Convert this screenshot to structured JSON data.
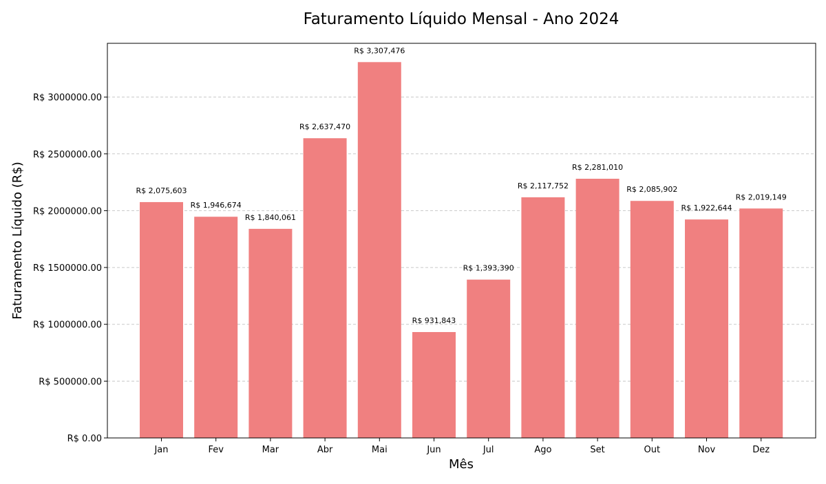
{
  "chart_data": {
    "type": "bar",
    "title": "Faturamento Líquido Mensal - Ano 2024",
    "xlabel": "Mês",
    "ylabel": "Faturamento Líquido (R$)",
    "categories": [
      "Jan",
      "Fev",
      "Mar",
      "Abr",
      "Mai",
      "Jun",
      "Jul",
      "Ago",
      "Set",
      "Out",
      "Nov",
      "Dez"
    ],
    "values": [
      2075603,
      1946674,
      1840061,
      2637470,
      3307476,
      931843,
      1393390,
      2117752,
      2281010,
      2085902,
      1922644,
      2019149
    ],
    "data_labels": [
      "R$ 2,075,603",
      "R$ 1,946,674",
      "R$ 1,840,061",
      "R$ 2,637,470",
      "R$ 3,307,476",
      "R$ 931,843",
      "R$ 1,393,390",
      "R$ 2,117,752",
      "R$ 2,281,010",
      "R$ 2,085,902",
      "R$ 1,922,644",
      "R$ 2,019,149"
    ],
    "ylim": [
      0,
      3472850
    ],
    "yticks": [
      0,
      500000,
      1000000,
      1500000,
      2000000,
      2500000,
      3000000
    ],
    "ytick_labels": [
      "R$ 0.00",
      "R$ 500000.00",
      "R$ 1000000.00",
      "R$ 1500000.00",
      "R$ 2000000.00",
      "R$ 2500000.00",
      "R$ 3000000.00"
    ],
    "bar_color": "#f08080",
    "grid": "y-dashed",
    "legend": "none"
  }
}
